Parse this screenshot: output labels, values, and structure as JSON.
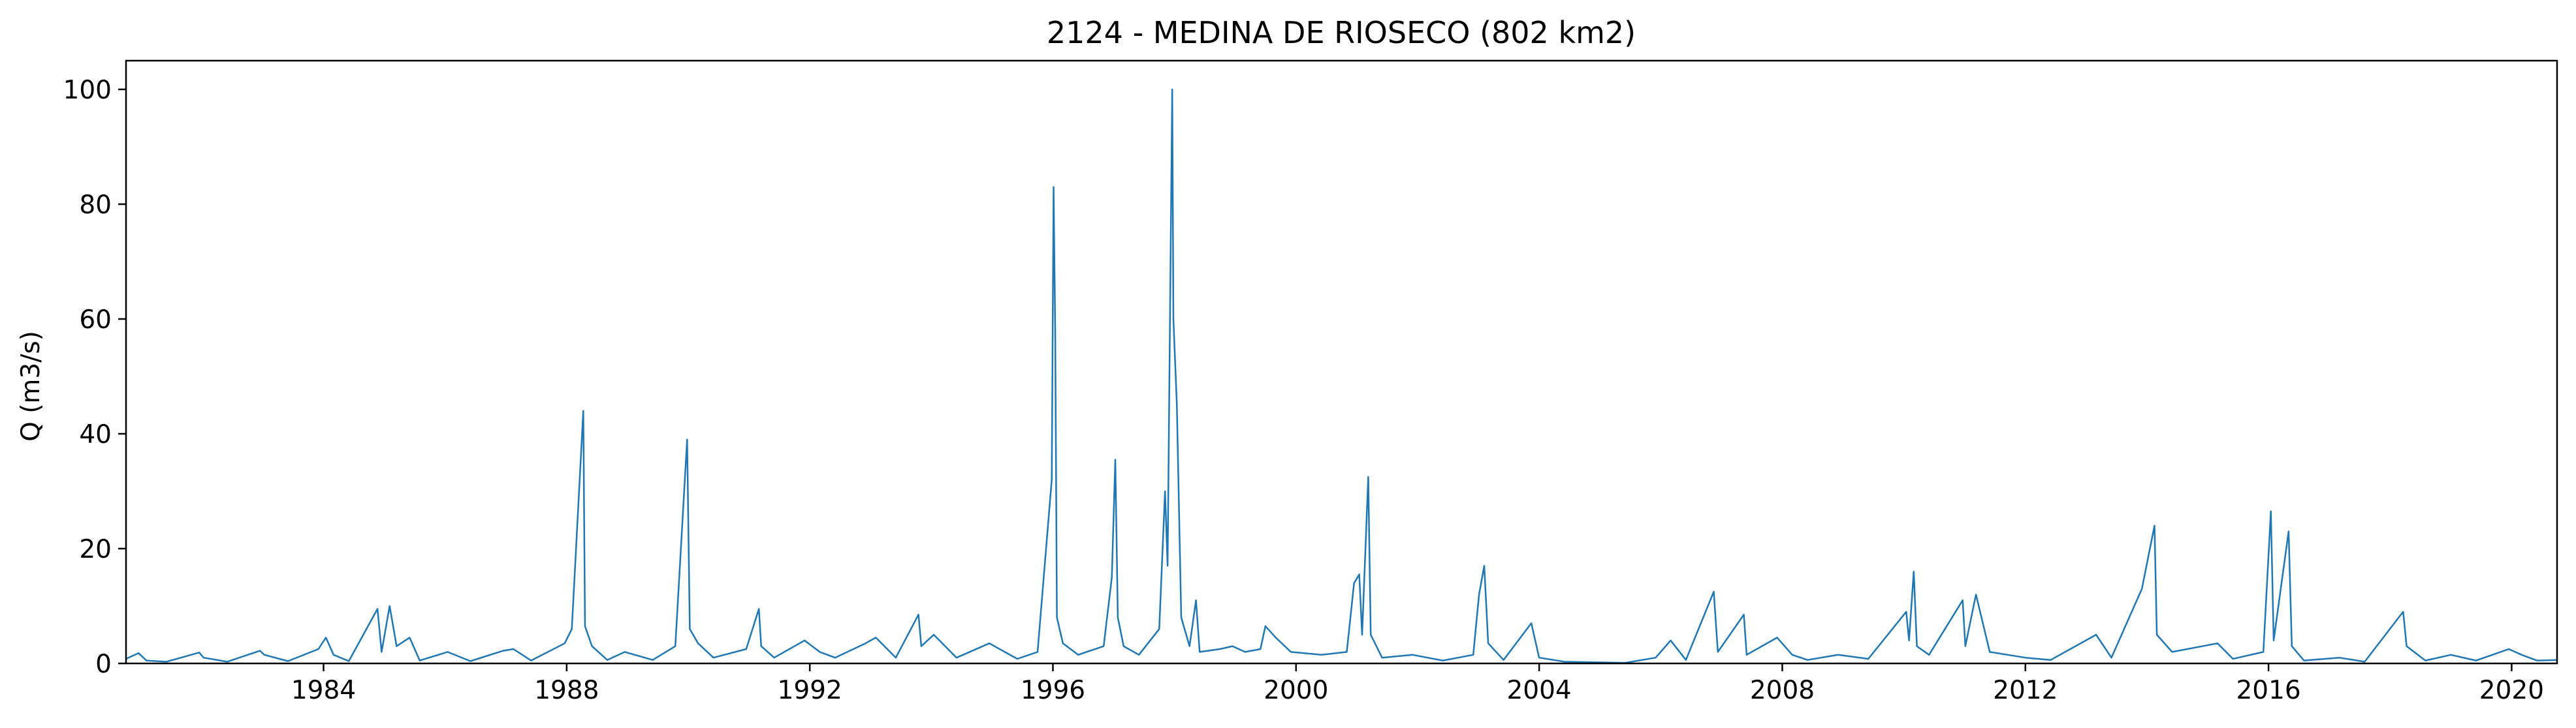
{
  "chart_data": {
    "type": "line",
    "title": "2124 - MEDINA DE RIOSECO (802 km2)",
    "xlabel": "",
    "ylabel": "Q (m3/s)",
    "xlim": [
      "1980-10-01",
      "2020-09-30"
    ],
    "ylim": [
      0,
      105
    ],
    "x_ticks": [
      "1984",
      "1988",
      "1992",
      "1996",
      "2000",
      "2004",
      "2008",
      "2012",
      "2016",
      "2020"
    ],
    "y_ticks": [
      0,
      20,
      40,
      60,
      80,
      100
    ],
    "grid": false,
    "legend": "none",
    "series": [
      {
        "color": "#1f77b4",
        "points": [
          [
            "1980-10-01",
            0.8
          ],
          [
            "1980-12-15",
            1.8
          ],
          [
            "1981-02-01",
            0.5
          ],
          [
            "1981-06-01",
            0.3
          ],
          [
            "1981-12-15",
            1.9
          ],
          [
            "1982-01-10",
            1.0
          ],
          [
            "1982-06-01",
            0.3
          ],
          [
            "1982-12-15",
            2.2
          ],
          [
            "1983-01-10",
            1.5
          ],
          [
            "1983-06-01",
            0.4
          ],
          [
            "1983-12-01",
            2.5
          ],
          [
            "1984-01-15",
            4.5
          ],
          [
            "1984-03-01",
            1.5
          ],
          [
            "1984-06-01",
            0.4
          ],
          [
            "1984-11-20",
            9.5
          ],
          [
            "1984-12-15",
            2.0
          ],
          [
            "1985-02-01",
            10.0
          ],
          [
            "1985-03-15",
            3.0
          ],
          [
            "1985-06-01",
            4.5
          ],
          [
            "1985-08-01",
            0.5
          ],
          [
            "1986-01-15",
            2.0
          ],
          [
            "1986-06-01",
            0.4
          ],
          [
            "1986-12-15",
            2.2
          ],
          [
            "1987-02-15",
            2.5
          ],
          [
            "1987-06-01",
            0.5
          ],
          [
            "1987-12-20",
            3.5
          ],
          [
            "1988-02-01",
            6.0
          ],
          [
            "1988-04-10",
            44.0
          ],
          [
            "1988-04-20",
            6.5
          ],
          [
            "1988-06-01",
            3.0
          ],
          [
            "1988-09-01",
            0.6
          ],
          [
            "1988-12-15",
            2.0
          ],
          [
            "1989-06-01",
            0.6
          ],
          [
            "1989-10-15",
            3.0
          ],
          [
            "1989-12-25",
            39.0
          ],
          [
            "1990-01-10",
            6.0
          ],
          [
            "1990-03-01",
            3.5
          ],
          [
            "1990-06-01",
            1.0
          ],
          [
            "1990-12-15",
            2.5
          ],
          [
            "1991-03-01",
            9.5
          ],
          [
            "1991-03-15",
            3.0
          ],
          [
            "1991-06-01",
            1.0
          ],
          [
            "1991-12-01",
            4.0
          ],
          [
            "1992-03-01",
            2.0
          ],
          [
            "1992-06-01",
            1.0
          ],
          [
            "1992-12-01",
            3.5
          ],
          [
            "1993-02-01",
            4.5
          ],
          [
            "1993-06-01",
            1.0
          ],
          [
            "1993-10-15",
            8.5
          ],
          [
            "1993-11-01",
            3.0
          ],
          [
            "1994-01-15",
            5.0
          ],
          [
            "1994-06-01",
            1.0
          ],
          [
            "1994-12-15",
            3.5
          ],
          [
            "1995-06-01",
            0.8
          ],
          [
            "1995-10-01",
            2.0
          ],
          [
            "1995-12-25",
            32.0
          ],
          [
            "1996-01-05",
            83.0
          ],
          [
            "1996-01-15",
            58.0
          ],
          [
            "1996-01-25",
            8.0
          ],
          [
            "1996-03-01",
            3.5
          ],
          [
            "1996-06-01",
            1.5
          ],
          [
            "1996-11-01",
            3.0
          ],
          [
            "1996-12-20",
            15.0
          ],
          [
            "1997-01-10",
            35.5
          ],
          [
            "1997-01-25",
            8.0
          ],
          [
            "1997-03-01",
            3.0
          ],
          [
            "1997-06-01",
            1.5
          ],
          [
            "1997-10-01",
            6.0
          ],
          [
            "1997-11-05",
            30.0
          ],
          [
            "1997-11-20",
            17.0
          ],
          [
            "1997-12-18",
            100.0
          ],
          [
            "1997-12-25",
            60.0
          ],
          [
            "1998-01-15",
            45.0
          ],
          [
            "1998-02-10",
            8.0
          ],
          [
            "1998-04-01",
            3.0
          ],
          [
            "1998-05-10",
            11.0
          ],
          [
            "1998-06-01",
            2.0
          ],
          [
            "1998-10-01",
            2.5
          ],
          [
            "1998-12-15",
            3.0
          ],
          [
            "1999-03-01",
            2.0
          ],
          [
            "1999-06-01",
            2.5
          ],
          [
            "1999-07-01",
            6.5
          ],
          [
            "1999-09-01",
            4.5
          ],
          [
            "1999-12-01",
            2.0
          ],
          [
            "2000-06-01",
            1.5
          ],
          [
            "2000-11-01",
            2.0
          ],
          [
            "2000-12-15",
            14.0
          ],
          [
            "2001-01-15",
            15.5
          ],
          [
            "2001-02-01",
            5.0
          ],
          [
            "2001-03-10",
            32.5
          ],
          [
            "2001-03-25",
            5.0
          ],
          [
            "2001-06-01",
            1.0
          ],
          [
            "2001-12-01",
            1.5
          ],
          [
            "2002-06-01",
            0.5
          ],
          [
            "2002-12-01",
            1.5
          ],
          [
            "2003-01-05",
            12.0
          ],
          [
            "2003-02-05",
            17.0
          ],
          [
            "2003-03-01",
            3.5
          ],
          [
            "2003-06-01",
            0.6
          ],
          [
            "2003-11-15",
            7.0
          ],
          [
            "2004-01-01",
            1.0
          ],
          [
            "2004-06-01",
            0.3
          ],
          [
            "2005-06-01",
            0.1
          ],
          [
            "2005-12-01",
            1.0
          ],
          [
            "2006-03-01",
            4.0
          ],
          [
            "2006-06-01",
            0.6
          ],
          [
            "2006-11-15",
            12.5
          ],
          [
            "2006-12-10",
            2.0
          ],
          [
            "2007-05-15",
            8.5
          ],
          [
            "2007-06-01",
            1.5
          ],
          [
            "2007-12-01",
            4.5
          ],
          [
            "2008-03-01",
            1.5
          ],
          [
            "2008-06-01",
            0.6
          ],
          [
            "2008-12-01",
            1.5
          ],
          [
            "2009-06-01",
            0.8
          ],
          [
            "2010-01-15",
            9.0
          ],
          [
            "2010-02-01",
            4.0
          ],
          [
            "2010-03-01",
            16.0
          ],
          [
            "2010-03-20",
            3.0
          ],
          [
            "2010-06-01",
            1.5
          ],
          [
            "2010-12-20",
            11.0
          ],
          [
            "2011-01-05",
            3.0
          ],
          [
            "2011-03-10",
            12.0
          ],
          [
            "2011-06-01",
            2.0
          ],
          [
            "2012-01-01",
            1.0
          ],
          [
            "2012-06-01",
            0.6
          ],
          [
            "2013-03-01",
            5.0
          ],
          [
            "2013-06-01",
            1.0
          ],
          [
            "2013-12-01",
            13.0
          ],
          [
            "2014-02-15",
            24.0
          ],
          [
            "2014-03-01",
            5.0
          ],
          [
            "2014-06-01",
            2.0
          ],
          [
            "2015-03-01",
            3.5
          ],
          [
            "2015-06-01",
            0.8
          ],
          [
            "2015-12-01",
            2.0
          ],
          [
            "2016-01-15",
            26.5
          ],
          [
            "2016-02-01",
            4.0
          ],
          [
            "2016-05-01",
            23.0
          ],
          [
            "2016-05-20",
            3.0
          ],
          [
            "2016-08-01",
            0.5
          ],
          [
            "2017-03-01",
            1.0
          ],
          [
            "2017-08-01",
            0.3
          ],
          [
            "2018-03-20",
            9.0
          ],
          [
            "2018-04-10",
            3.0
          ],
          [
            "2018-08-01",
            0.5
          ],
          [
            "2019-01-01",
            1.5
          ],
          [
            "2019-06-01",
            0.5
          ],
          [
            "2019-12-15",
            2.5
          ],
          [
            "2020-03-01",
            1.5
          ],
          [
            "2020-06-01",
            0.5
          ],
          [
            "2020-09-30",
            0.6
          ]
        ]
      }
    ]
  }
}
